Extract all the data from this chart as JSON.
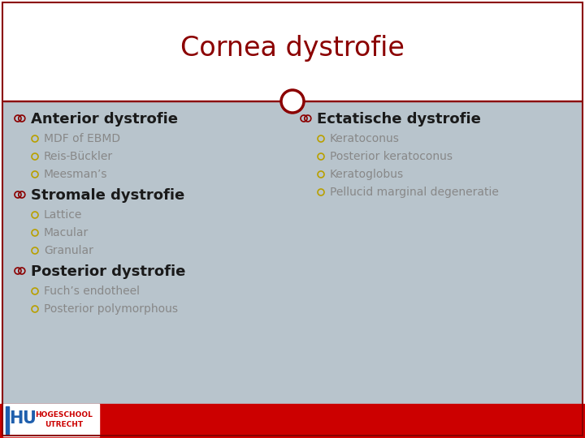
{
  "title": "Cornea dystrofie",
  "title_color": "#8B0000",
  "bg_color": "#FFFFFF",
  "border_color": "#8B0000",
  "content_bg_color": "#B8C4CC",
  "bottom_bar_color": "#CC0000",
  "divider_color": "#8B0000",
  "heading_color": "#1A1A1A",
  "subitem_color": "#888888",
  "bullet_icon_color": "#8B0000",
  "sub_bullet_color": "#B8A000",
  "left_column": {
    "sections": [
      {
        "heading": "Anterior dystrofie",
        "items": [
          "MDF of EBMD",
          "Reis-Bückler",
          "Meesman’s"
        ]
      },
      {
        "heading": "Stromale dystrofie",
        "items": [
          "Lattice",
          "Macular",
          "Granular"
        ]
      },
      {
        "heading": "Posterior dystrofie",
        "items": [
          "Fuch’s endotheel",
          "Posterior polymorphous"
        ]
      }
    ]
  },
  "right_column": {
    "sections": [
      {
        "heading": "Ectatische dystrofie",
        "items": [
          "Keratoconus",
          "Posterior keratoconus",
          "Keratoglobus",
          "Pellucid marginal degeneratie"
        ]
      }
    ]
  }
}
